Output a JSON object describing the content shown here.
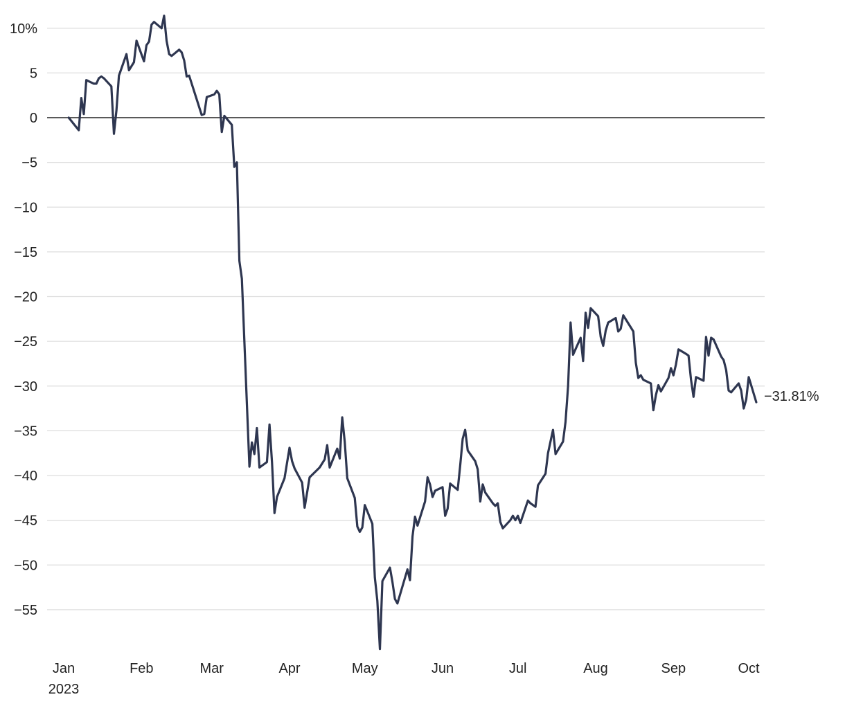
{
  "chart_data": {
    "type": "line",
    "title": "",
    "xlabel": "",
    "ylabel": "",
    "ylim": [
      -60,
      12
    ],
    "xlim": [
      "2023-01-01",
      "2023-10-04"
    ],
    "grid": true,
    "zero_line": true,
    "y_ticks": [
      {
        "value": 10,
        "label": "10%"
      },
      {
        "value": 5,
        "label": "5"
      },
      {
        "value": 0,
        "label": "0"
      },
      {
        "value": -5,
        "label": "−5"
      },
      {
        "value": -10,
        "label": "−10"
      },
      {
        "value": -15,
        "label": "−15"
      },
      {
        "value": -20,
        "label": "−20"
      },
      {
        "value": -25,
        "label": "−25"
      },
      {
        "value": -30,
        "label": "−30"
      },
      {
        "value": -35,
        "label": "−35"
      },
      {
        "value": -40,
        "label": "−40"
      },
      {
        "value": -45,
        "label": "−45"
      },
      {
        "value": -50,
        "label": "−50"
      },
      {
        "value": -55,
        "label": "−55"
      }
    ],
    "x_ticks": [
      {
        "date": "2023-01-01",
        "label": "Jan",
        "sublabel": "2023"
      },
      {
        "date": "2023-02-01",
        "label": "Feb"
      },
      {
        "date": "2023-03-01",
        "label": "Mar"
      },
      {
        "date": "2023-04-01",
        "label": "Apr"
      },
      {
        "date": "2023-05-01",
        "label": "May"
      },
      {
        "date": "2023-06-01",
        "label": "Jun"
      },
      {
        "date": "2023-07-01",
        "label": "Jul"
      },
      {
        "date": "2023-08-01",
        "label": "Aug"
      },
      {
        "date": "2023-09-01",
        "label": "Sep"
      },
      {
        "date": "2023-10-01",
        "label": "Oct"
      }
    ],
    "end_label": "−31.81%",
    "colors": {
      "line": "#2e3650",
      "grid": "#dddddd",
      "zero": "#222222"
    },
    "series": [
      {
        "points": [
          [
            "2023-01-03",
            0.0
          ],
          [
            "2023-01-07",
            -1.4
          ],
          [
            "2023-01-08",
            2.2
          ],
          [
            "2023-01-09",
            0.4
          ],
          [
            "2023-01-10",
            4.2
          ],
          [
            "2023-01-13",
            3.8
          ],
          [
            "2023-01-14",
            3.8
          ],
          [
            "2023-01-15",
            4.4
          ],
          [
            "2023-01-16",
            4.6
          ],
          [
            "2023-01-17",
            4.4
          ],
          [
            "2023-01-20",
            3.5
          ],
          [
            "2023-01-21",
            -1.8
          ],
          [
            "2023-01-22",
            0.8
          ],
          [
            "2023-01-23",
            4.7
          ],
          [
            "2023-01-26",
            7.1
          ],
          [
            "2023-01-27",
            5.3
          ],
          [
            "2023-01-29",
            6.2
          ],
          [
            "2023-01-30",
            8.6
          ],
          [
            "2023-02-02",
            6.3
          ],
          [
            "2023-02-03",
            8.1
          ],
          [
            "2023-02-04",
            8.5
          ],
          [
            "2023-02-05",
            10.4
          ],
          [
            "2023-02-06",
            10.7
          ],
          [
            "2023-02-09",
            10.0
          ],
          [
            "2023-02-10",
            11.4
          ],
          [
            "2023-02-11",
            8.6
          ],
          [
            "2023-02-12",
            7.1
          ],
          [
            "2023-02-13",
            6.9
          ],
          [
            "2023-02-16",
            7.6
          ],
          [
            "2023-02-17",
            7.3
          ],
          [
            "2023-02-18",
            6.4
          ],
          [
            "2023-02-19",
            4.6
          ],
          [
            "2023-02-20",
            4.7
          ],
          [
            "2023-02-25",
            0.3
          ],
          [
            "2023-02-26",
            0.4
          ],
          [
            "2023-02-27",
            2.3
          ],
          [
            "2023-03-02",
            2.6
          ],
          [
            "2023-03-03",
            3.0
          ],
          [
            "2023-03-04",
            2.6
          ],
          [
            "2023-03-05",
            -1.6
          ],
          [
            "2023-03-06",
            0.2
          ],
          [
            "2023-03-09",
            -0.8
          ],
          [
            "2023-03-10",
            -5.5
          ],
          [
            "2023-03-11",
            -5.0
          ],
          [
            "2023-03-12",
            -16.0
          ],
          [
            "2023-03-13",
            -18.0
          ],
          [
            "2023-03-16",
            -39.0
          ],
          [
            "2023-03-17",
            -36.3
          ],
          [
            "2023-03-18",
            -37.6
          ],
          [
            "2023-03-19",
            -34.7
          ],
          [
            "2023-03-20",
            -39.1
          ],
          [
            "2023-03-23",
            -38.5
          ],
          [
            "2023-03-24",
            -34.3
          ],
          [
            "2023-03-25",
            -38.5
          ],
          [
            "2023-03-26",
            -44.2
          ],
          [
            "2023-03-27",
            -42.4
          ],
          [
            "2023-03-30",
            -40.3
          ],
          [
            "2023-03-31",
            -38.6
          ],
          [
            "2023-04-01",
            -36.9
          ],
          [
            "2023-04-02",
            -38.4
          ],
          [
            "2023-04-03",
            -39.2
          ],
          [
            "2023-04-06",
            -40.8
          ],
          [
            "2023-04-07",
            -43.6
          ],
          [
            "2023-04-08",
            -41.9
          ],
          [
            "2023-04-09",
            -40.2
          ],
          [
            "2023-04-13",
            -39.1
          ],
          [
            "2023-04-15",
            -38.2
          ],
          [
            "2023-04-16",
            -36.6
          ],
          [
            "2023-04-17",
            -39.1
          ],
          [
            "2023-04-20",
            -37.0
          ],
          [
            "2023-04-21",
            -38.1
          ],
          [
            "2023-04-22",
            -33.5
          ],
          [
            "2023-04-23",
            -36.2
          ],
          [
            "2023-04-24",
            -40.3
          ],
          [
            "2023-04-27",
            -42.5
          ],
          [
            "2023-04-28",
            -45.7
          ],
          [
            "2023-04-29",
            -46.3
          ],
          [
            "2023-04-30",
            -45.8
          ],
          [
            "2023-05-01",
            -43.3
          ],
          [
            "2023-05-04",
            -45.4
          ],
          [
            "2023-05-05",
            -51.4
          ],
          [
            "2023-05-06",
            -54.0
          ],
          [
            "2023-05-07",
            -59.4
          ],
          [
            "2023-05-08",
            -51.8
          ],
          [
            "2023-05-11",
            -50.3
          ],
          [
            "2023-05-12",
            -51.9
          ],
          [
            "2023-05-13",
            -53.8
          ],
          [
            "2023-05-14",
            -54.3
          ],
          [
            "2023-05-18",
            -50.5
          ],
          [
            "2023-05-19",
            -51.7
          ],
          [
            "2023-05-20",
            -46.8
          ],
          [
            "2023-05-21",
            -44.6
          ],
          [
            "2023-05-22",
            -45.6
          ],
          [
            "2023-05-25",
            -42.9
          ],
          [
            "2023-05-26",
            -40.2
          ],
          [
            "2023-05-27",
            -41.0
          ],
          [
            "2023-05-28",
            -42.4
          ],
          [
            "2023-05-29",
            -41.7
          ],
          [
            "2023-06-01",
            -41.3
          ],
          [
            "2023-06-02",
            -44.5
          ],
          [
            "2023-06-03",
            -43.7
          ],
          [
            "2023-06-04",
            -40.9
          ],
          [
            "2023-06-07",
            -41.6
          ],
          [
            "2023-06-08",
            -38.9
          ],
          [
            "2023-06-09",
            -35.9
          ],
          [
            "2023-06-10",
            -34.9
          ],
          [
            "2023-06-11",
            -37.2
          ],
          [
            "2023-06-14",
            -38.4
          ],
          [
            "2023-06-15",
            -39.3
          ],
          [
            "2023-06-16",
            -42.9
          ],
          [
            "2023-06-17",
            -41.0
          ],
          [
            "2023-06-18",
            -41.9
          ],
          [
            "2023-06-21",
            -43.1
          ],
          [
            "2023-06-22",
            -43.4
          ],
          [
            "2023-06-23",
            -43.1
          ],
          [
            "2023-06-24",
            -45.2
          ],
          [
            "2023-06-25",
            -45.9
          ],
          [
            "2023-06-28",
            -45.0
          ],
          [
            "2023-06-29",
            -44.5
          ],
          [
            "2023-06-30",
            -45.0
          ],
          [
            "2023-07-01",
            -44.5
          ],
          [
            "2023-07-02",
            -45.3
          ],
          [
            "2023-07-05",
            -42.8
          ],
          [
            "2023-07-06",
            -43.1
          ],
          [
            "2023-07-08",
            -43.5
          ],
          [
            "2023-07-09",
            -41.1
          ],
          [
            "2023-07-12",
            -39.8
          ],
          [
            "2023-07-13",
            -37.5
          ],
          [
            "2023-07-15",
            -34.9
          ],
          [
            "2023-07-16",
            -37.6
          ],
          [
            "2023-07-19",
            -36.2
          ],
          [
            "2023-07-20",
            -34.0
          ],
          [
            "2023-07-21",
            -30.0
          ],
          [
            "2023-07-22",
            -22.9
          ],
          [
            "2023-07-23",
            -26.5
          ],
          [
            "2023-07-26",
            -24.6
          ],
          [
            "2023-07-27",
            -27.2
          ],
          [
            "2023-07-28",
            -21.8
          ],
          [
            "2023-07-29",
            -23.5
          ],
          [
            "2023-07-30",
            -21.3
          ],
          [
            "2023-08-02",
            -22.2
          ],
          [
            "2023-08-03",
            -24.5
          ],
          [
            "2023-08-04",
            -25.5
          ],
          [
            "2023-08-05",
            -23.8
          ],
          [
            "2023-08-06",
            -22.9
          ],
          [
            "2023-08-09",
            -22.4
          ],
          [
            "2023-08-10",
            -23.9
          ],
          [
            "2023-08-11",
            -23.6
          ],
          [
            "2023-08-12",
            -22.1
          ],
          [
            "2023-08-16",
            -23.9
          ],
          [
            "2023-08-17",
            -27.4
          ],
          [
            "2023-08-18",
            -29.1
          ],
          [
            "2023-08-19",
            -28.8
          ],
          [
            "2023-08-20",
            -29.3
          ],
          [
            "2023-08-23",
            -29.7
          ],
          [
            "2023-08-24",
            -32.7
          ],
          [
            "2023-08-25",
            -31.0
          ],
          [
            "2023-08-26",
            -29.9
          ],
          [
            "2023-08-27",
            -30.6
          ],
          [
            "2023-08-30",
            -29.1
          ],
          [
            "2023-08-31",
            -28.0
          ],
          [
            "2023-09-01",
            -28.8
          ],
          [
            "2023-09-02",
            -27.6
          ],
          [
            "2023-09-03",
            -25.9
          ],
          [
            "2023-09-06",
            -26.4
          ],
          [
            "2023-09-07",
            -26.6
          ],
          [
            "2023-09-08",
            -29.3
          ],
          [
            "2023-09-09",
            -31.2
          ],
          [
            "2023-09-10",
            -29.0
          ],
          [
            "2023-09-13",
            -29.4
          ],
          [
            "2023-09-14",
            -24.5
          ],
          [
            "2023-09-15",
            -26.6
          ],
          [
            "2023-09-16",
            -24.6
          ],
          [
            "2023-09-17",
            -24.8
          ],
          [
            "2023-09-20",
            -26.7
          ],
          [
            "2023-09-21",
            -27.1
          ],
          [
            "2023-09-22",
            -28.2
          ],
          [
            "2023-09-23",
            -30.5
          ],
          [
            "2023-09-24",
            -30.7
          ],
          [
            "2023-09-27",
            -29.7
          ],
          [
            "2023-09-28",
            -30.5
          ],
          [
            "2023-09-29",
            -32.5
          ],
          [
            "2023-09-30",
            -31.5
          ],
          [
            "2023-10-01",
            -29.0
          ],
          [
            "2023-10-04",
            -31.81
          ]
        ]
      }
    ]
  }
}
